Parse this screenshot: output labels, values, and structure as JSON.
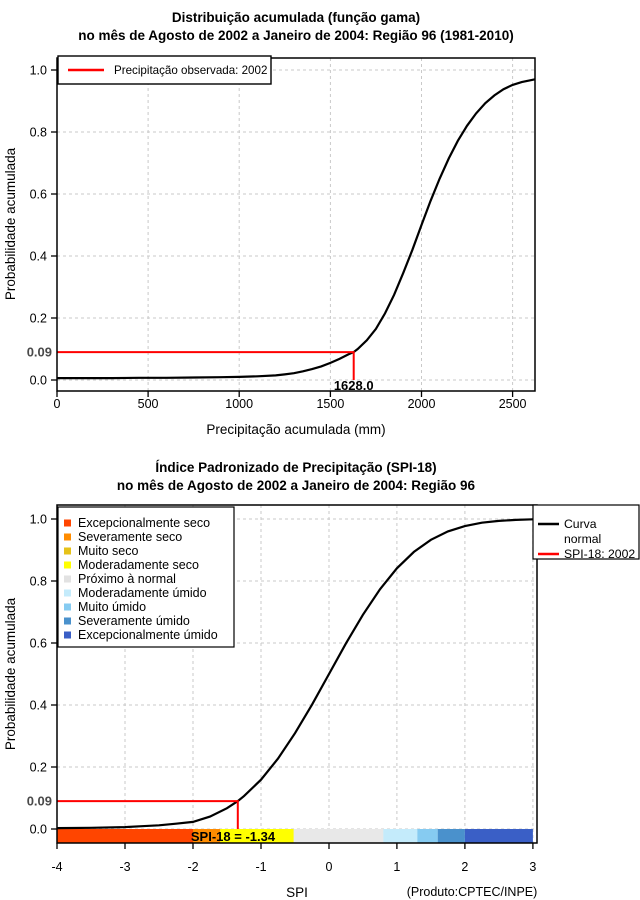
{
  "page": {
    "background": "#FFFFFF"
  },
  "chart_data": [
    {
      "type": "line",
      "title": "Distribuição acumulada (função gama)",
      "subtitle": "no mês de Agosto de 2002 a Janeiro de 2004: Região 96 (1981-2010)",
      "xlabel": "Precipitação acumulada (mm)",
      "ylabel": "Probabilidade acumulada",
      "xlim": [
        0,
        2623
      ],
      "ylim": [
        0,
        1
      ],
      "grid": "dashed",
      "legend_position": "top-left",
      "xticks": [
        {
          "v": 0,
          "label": "0"
        },
        {
          "v": 500,
          "label": "500"
        },
        {
          "v": 1000,
          "label": "1000"
        },
        {
          "v": 1500,
          "label": "1500"
        },
        {
          "v": 2000,
          "label": "2000"
        },
        {
          "v": 2500,
          "label": "2500"
        }
      ],
      "yticks": [
        {
          "v": 1.0,
          "label": "1.0"
        },
        {
          "v": 0.8,
          "label": "0.8"
        },
        {
          "v": 0.6,
          "label": "0.6"
        },
        {
          "v": 0.4,
          "label": "0.4"
        },
        {
          "v": 0.2,
          "label": "0.2"
        },
        {
          "v": 0.0,
          "label": "0.0"
        }
      ],
      "legend": {
        "entries": [
          {
            "label": "Precipitação observada: 2002",
            "color": "#FF0000"
          }
        ]
      },
      "reference": {
        "x": 1628,
        "y": 0.09,
        "x_label": "1628.0",
        "y_label": "0.09",
        "color": "#FF0000"
      },
      "series": [
        {
          "color": "#000000",
          "points": [
            [
              0,
              0.006
            ],
            [
              150,
              0.006
            ],
            [
              300,
              0.006
            ],
            [
              450,
              0.007
            ],
            [
              600,
              0.007
            ],
            [
              750,
              0.008
            ],
            [
              900,
              0.009
            ],
            [
              1000,
              0.01
            ],
            [
              1100,
              0.012
            ],
            [
              1200,
              0.015
            ],
            [
              1250,
              0.018
            ],
            [
              1300,
              0.022
            ],
            [
              1350,
              0.028
            ],
            [
              1400,
              0.035
            ],
            [
              1450,
              0.044
            ],
            [
              1500,
              0.055
            ],
            [
              1550,
              0.068
            ],
            [
              1600,
              0.083
            ],
            [
              1628,
              0.09
            ],
            [
              1650,
              0.1
            ],
            [
              1700,
              0.128
            ],
            [
              1750,
              0.165
            ],
            [
              1800,
              0.215
            ],
            [
              1850,
              0.275
            ],
            [
              1900,
              0.345
            ],
            [
              1950,
              0.42
            ],
            [
              2000,
              0.5
            ],
            [
              2050,
              0.578
            ],
            [
              2100,
              0.65
            ],
            [
              2150,
              0.715
            ],
            [
              2200,
              0.772
            ],
            [
              2250,
              0.82
            ],
            [
              2300,
              0.86
            ],
            [
              2350,
              0.893
            ],
            [
              2400,
              0.918
            ],
            [
              2450,
              0.938
            ],
            [
              2500,
              0.952
            ],
            [
              2550,
              0.961
            ],
            [
              2600,
              0.967
            ],
            [
              2623,
              0.97
            ]
          ]
        }
      ]
    },
    {
      "type": "line",
      "title": "Índice Padronizado de Precipitação (SPI-18)",
      "subtitle": "no mês de Agosto de 2002 a Janeiro de 2004: Região 96",
      "xlabel": "SPI",
      "ylabel": "Probabilidade acumulada",
      "note": "(Produto:CPTEC/INPE)",
      "xlim": [
        -4,
        3.06
      ],
      "ylim": [
        0,
        1
      ],
      "grid": "dashed",
      "legend_position": "top-left and top-right",
      "xticks": [
        {
          "v": -4,
          "label": "-4"
        },
        {
          "v": -3,
          "label": "-3"
        },
        {
          "v": -2,
          "label": "-2"
        },
        {
          "v": -1,
          "label": "-1"
        },
        {
          "v": 0,
          "label": "0"
        },
        {
          "v": 1,
          "label": "1"
        },
        {
          "v": 2,
          "label": "2"
        },
        {
          "v": 3,
          "label": "3"
        }
      ],
      "yticks": [
        {
          "v": 1.0,
          "label": "1.0"
        },
        {
          "v": 0.8,
          "label": "0.8"
        },
        {
          "v": 0.6,
          "label": "0.6"
        },
        {
          "v": 0.4,
          "label": "0.4"
        },
        {
          "v": 0.2,
          "label": "0.2"
        },
        {
          "v": 0.0,
          "label": "0.0"
        }
      ],
      "category_legend": {
        "entries": [
          {
            "label": "Excepcionalmente seco",
            "color": "#FF4500"
          },
          {
            "label": "Severamente seco",
            "color": "#FF8C00"
          },
          {
            "label": "Muito seco",
            "color": "#E6C219"
          },
          {
            "label": "Moderadamente seco",
            "color": "#FFFF00"
          },
          {
            "label": "Próximo à normal",
            "color": "#E2E2E2"
          },
          {
            "label": "Moderadamente úmido",
            "color": "#C4EBFB"
          },
          {
            "label": "Muito úmido",
            "color": "#86CBF1"
          },
          {
            "label": "Severamente úmido",
            "color": "#4A91CC"
          },
          {
            "label": "Excepcionalmente úmido",
            "color": "#3A5FC6"
          }
        ]
      },
      "line_legend": {
        "entries": [
          {
            "label_lines": [
              "Curva",
              "normal"
            ],
            "color": "#000000"
          },
          {
            "label_lines": [
              "SPI-18: 2002"
            ],
            "color": "#FF0000"
          }
        ]
      },
      "category_bar": {
        "segments": [
          {
            "from": -4,
            "to": -2,
            "color": "#FF4500"
          },
          {
            "from": -2,
            "to": -1.6,
            "color": "#FF8C00"
          },
          {
            "from": -1.6,
            "to": -1.3,
            "color": "#E6C219"
          },
          {
            "from": -1.3,
            "to": -0.8,
            "color": "#FFFF00"
          },
          {
            "from": -0.8,
            "to": 0.8,
            "color": "#E8E8E8"
          },
          {
            "from": 0.8,
            "to": 1.3,
            "color": "#C4EBFB"
          },
          {
            "from": 1.3,
            "to": 1.6,
            "color": "#86CBF1"
          },
          {
            "from": 1.6,
            "to": 2,
            "color": "#4A91CC"
          },
          {
            "from": 2,
            "to": 3,
            "color": "#3A5FC6"
          }
        ]
      },
      "reference": {
        "x": -1.34,
        "y": 0.09,
        "x_label": "SPI-18 = -1.34",
        "y_label": "0.09",
        "color": "#FF0000",
        "x_label_highlight": "#FFFF00",
        "x_label_from": -2.03,
        "highlight_from": -1.6,
        "highlight_to": -0.52
      },
      "series": [
        {
          "color": "#000000",
          "points": [
            [
              -4,
              0.003
            ],
            [
              -3.5,
              0.004
            ],
            [
              -3,
              0.006
            ],
            [
              -2.75,
              0.009
            ],
            [
              -2.5,
              0.012
            ],
            [
              -2.25,
              0.017
            ],
            [
              -2,
              0.023
            ],
            [
              -1.75,
              0.04
            ],
            [
              -1.5,
              0.067
            ],
            [
              -1.34,
              0.09
            ],
            [
              -1.25,
              0.106
            ],
            [
              -1,
              0.159
            ],
            [
              -0.75,
              0.227
            ],
            [
              -0.5,
              0.309
            ],
            [
              -0.25,
              0.401
            ],
            [
              0,
              0.5
            ],
            [
              0.25,
              0.599
            ],
            [
              0.5,
              0.691
            ],
            [
              0.75,
              0.773
            ],
            [
              1,
              0.841
            ],
            [
              1.25,
              0.894
            ],
            [
              1.5,
              0.933
            ],
            [
              1.75,
              0.96
            ],
            [
              2,
              0.977
            ],
            [
              2.25,
              0.988
            ],
            [
              2.5,
              0.994
            ],
            [
              2.75,
              0.997
            ],
            [
              3,
              0.999
            ]
          ]
        }
      ]
    }
  ]
}
